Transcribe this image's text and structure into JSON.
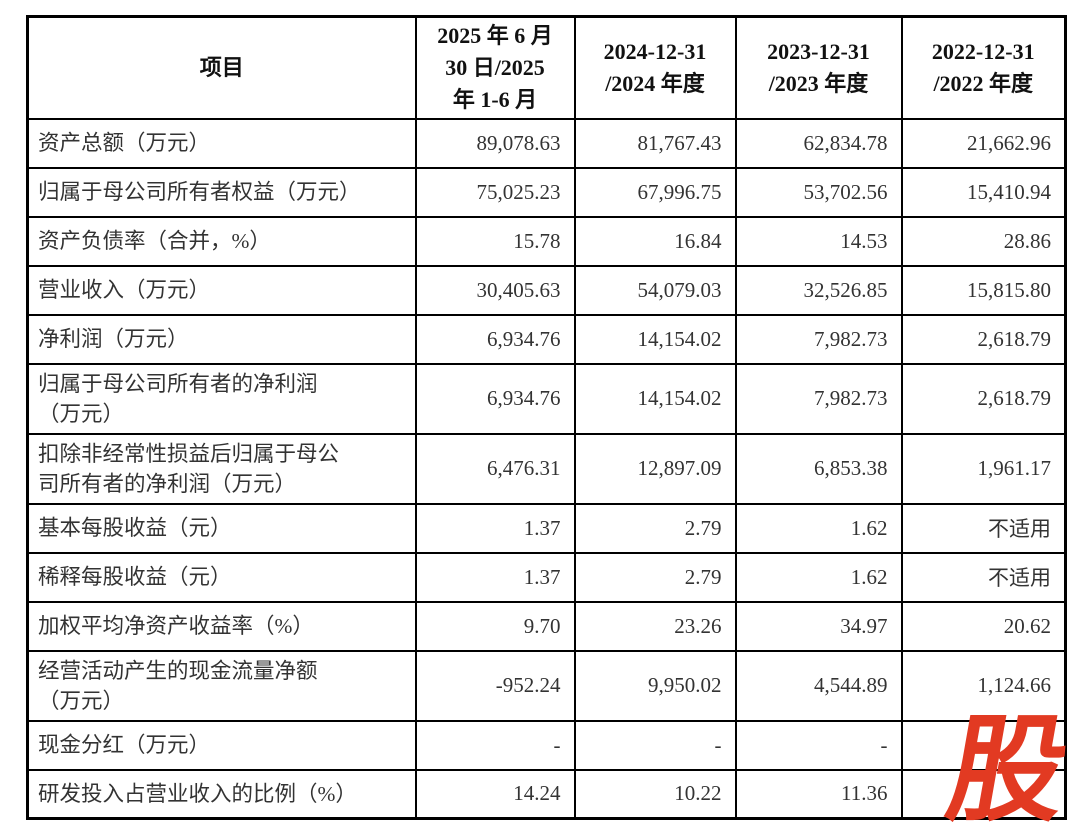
{
  "table": {
    "header": {
      "item_col": "项目",
      "period_cols": [
        "2025 年 6 月\n30 日/2025\n年 1-6 月",
        "2024-12-31\n/2024 年度",
        "2023-12-31\n/2023 年度",
        "2022-12-31\n/2022 年度"
      ]
    },
    "rows": [
      {
        "label": "资产总额（万元）",
        "values": [
          "89,078.63",
          "81,767.43",
          "62,834.78",
          "21,662.96"
        ]
      },
      {
        "label": "归属于母公司所有者权益（万元）",
        "values": [
          "75,025.23",
          "67,996.75",
          "53,702.56",
          "15,410.94"
        ]
      },
      {
        "label": "资产负债率（合并，%）",
        "values": [
          "15.78",
          "16.84",
          "14.53",
          "28.86"
        ]
      },
      {
        "label": "营业收入（万元）",
        "values": [
          "30,405.63",
          "54,079.03",
          "32,526.85",
          "15,815.80"
        ]
      },
      {
        "label": "净利润（万元）",
        "values": [
          "6,934.76",
          "14,154.02",
          "7,982.73",
          "2,618.79"
        ]
      },
      {
        "label": "归属于母公司所有者的净利润\n（万元）",
        "values": [
          "6,934.76",
          "14,154.02",
          "7,982.73",
          "2,618.79"
        ]
      },
      {
        "label": "扣除非经常性损益后归属于母公\n司所有者的净利润（万元）",
        "values": [
          "6,476.31",
          "12,897.09",
          "6,853.38",
          "1,961.17"
        ]
      },
      {
        "label": "基本每股收益（元）",
        "values": [
          "1.37",
          "2.79",
          "1.62",
          "不适用"
        ]
      },
      {
        "label": "稀释每股收益（元）",
        "values": [
          "1.37",
          "2.79",
          "1.62",
          "不适用"
        ]
      },
      {
        "label": "加权平均净资产收益率（%）",
        "values": [
          "9.70",
          "23.26",
          "34.97",
          "20.62"
        ]
      },
      {
        "label": "经营活动产生的现金流量净额\n（万元）",
        "values": [
          "-952.24",
          "9,950.02",
          "4,544.89",
          "1,124.66"
        ]
      },
      {
        "label": "现金分红（万元）",
        "values": [
          "-",
          "-",
          "-",
          ""
        ]
      },
      {
        "label": "研发投入占营业收入的比例（%）",
        "values": [
          "14.24",
          "10.22",
          "11.36",
          ""
        ]
      }
    ]
  },
  "watermark": {
    "text": "股",
    "color": "#e23a22"
  }
}
